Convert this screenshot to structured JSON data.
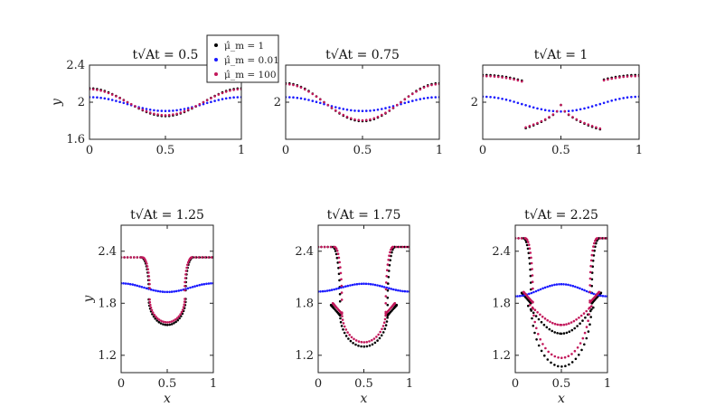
{
  "figure": {
    "legend": [
      {
        "label": "μ̂_m = 1",
        "color": "#000000"
      },
      {
        "label": "μ̂_m = 0.01",
        "color": "#1a1aff"
      },
      {
        "label": "μ̂_m = 100",
        "color": "#c2185b"
      }
    ],
    "title_prefix": "t√At = ",
    "xlabel": "x",
    "ylabel": "y"
  },
  "chart_data": [
    {
      "type": "scatter",
      "title_value": "0.5",
      "xlim": [
        0,
        1
      ],
      "ylim": [
        1.6,
        2.4
      ],
      "xticks": [
        0,
        0.5,
        1
      ],
      "yticks": [
        1.6,
        2,
        2.4
      ],
      "xlabel": "",
      "ylabel": "y",
      "series": [
        {
          "name": "μ̂_m = 1",
          "shape": "open",
          "amp": 0.15,
          "extra": 0,
          "pole": 0
        },
        {
          "name": "μ̂_m = 0.01",
          "shape": "wave",
          "amp": 0.075,
          "mid": 1.98
        },
        {
          "name": "μ̂_m = 100",
          "shape": "open",
          "amp": 0.14,
          "extra": 0,
          "pole": 0
        }
      ]
    },
    {
      "type": "scatter",
      "title_value": "0.75",
      "xlim": [
        0,
        1
      ],
      "ylim": [
        1.6,
        2.4
      ],
      "xticks": [
        0,
        0.5,
        1
      ],
      "yticks": [
        2
      ],
      "xlabel": "",
      "ylabel": "",
      "series": [
        {
          "name": "μ̂_m = 1",
          "shape": "open",
          "amp": 0.205,
          "extra": 0,
          "pole": 0
        },
        {
          "name": "μ̂_m = 0.01",
          "shape": "wave",
          "amp": 0.075,
          "mid": 1.98
        },
        {
          "name": "μ̂_m = 100",
          "shape": "open",
          "amp": 0.195,
          "extra": 0,
          "pole": 0
        }
      ]
    },
    {
      "type": "scatter",
      "title_value": "1",
      "xlim": [
        0,
        1
      ],
      "ylim": [
        1.6,
        2.4
      ],
      "xticks": [
        0,
        0.5,
        1
      ],
      "yticks": [
        2
      ],
      "xlabel": "",
      "ylabel": "",
      "series": [
        {
          "name": "μ̂_m = 1",
          "shape": "open",
          "amp": 0.3,
          "extra": 0.12,
          "pole": 0.03
        },
        {
          "name": "μ̂_m = 0.01",
          "shape": "wave",
          "amp": 0.08,
          "mid": 1.98
        },
        {
          "name": "μ̂_m = 100",
          "shape": "open",
          "amp": 0.29,
          "extra": 0.11,
          "pole": 0.03
        }
      ]
    },
    {
      "type": "scatter",
      "title_value": "1.25",
      "xlim": [
        0,
        1
      ],
      "ylim": [
        1.0,
        2.7
      ],
      "xticks": [
        0,
        0.5,
        1
      ],
      "yticks": [
        1.2,
        1.8,
        2.4
      ],
      "xlabel": "x",
      "ylabel": "y",
      "series": [
        {
          "name": "μ̂_m = 1",
          "shape": "mushroom",
          "top": 2.33,
          "stemL": 0.3,
          "stemR": 0.7,
          "bottom": 1.55,
          "hook": 0,
          "hookY": 1.9
        },
        {
          "name": "μ̂_m = 0.01",
          "shape": "wave",
          "amp": 0.05,
          "mid": 1.98
        },
        {
          "name": "μ̂_m = 100",
          "shape": "mushroom",
          "top": 2.33,
          "stemL": 0.31,
          "stemR": 0.69,
          "bottom": 1.58,
          "hook": 0,
          "hookY": 1.9
        }
      ]
    },
    {
      "type": "scatter",
      "title_value": "1.75",
      "xlim": [
        0,
        1
      ],
      "ylim": [
        1.0,
        2.7
      ],
      "xticks": [
        0,
        0.5,
        1
      ],
      "yticks": [
        1.2,
        1.8,
        2.4
      ],
      "xlabel": "x",
      "ylabel": "",
      "series": [
        {
          "name": "μ̂_m = 1",
          "shape": "mushroom",
          "top": 2.45,
          "stemL": 0.24,
          "stemR": 0.76,
          "bottom": 1.3,
          "hook": 1,
          "hookY": 1.78
        },
        {
          "name": "μ̂_m = 0.01",
          "shape": "wave",
          "amp": -0.045,
          "mid": 1.98
        },
        {
          "name": "μ̂_m = 100",
          "shape": "mushroom",
          "top": 2.45,
          "stemL": 0.26,
          "stemR": 0.74,
          "bottom": 1.35,
          "hook": 1,
          "hookY": 1.8
        }
      ]
    },
    {
      "type": "scatter",
      "title_value": "2.25",
      "xlim": [
        0,
        1
      ],
      "ylim": [
        1.0,
        2.7
      ],
      "xticks": [
        0,
        0.5,
        1
      ],
      "yticks": [
        1.2,
        1.8,
        2.4
      ],
      "xlabel": "x",
      "ylabel": "",
      "series": [
        {
          "name": "μ̂_m = 1",
          "shape": "mushroom",
          "top": 2.55,
          "stemL": 0.17,
          "stemR": 0.83,
          "bottom": 1.07,
          "hook": 1,
          "hookY": 1.92,
          "inner": 1.45
        },
        {
          "name": "μ̂_m = 0.01",
          "shape": "wave",
          "amp": -0.07,
          "mid": 1.95
        },
        {
          "name": "μ̂_m = 100",
          "shape": "mushroom",
          "top": 2.55,
          "stemL": 0.19,
          "stemR": 0.81,
          "bottom": 1.17,
          "hook": 1,
          "hookY": 1.93,
          "inner": 1.55
        }
      ]
    }
  ]
}
